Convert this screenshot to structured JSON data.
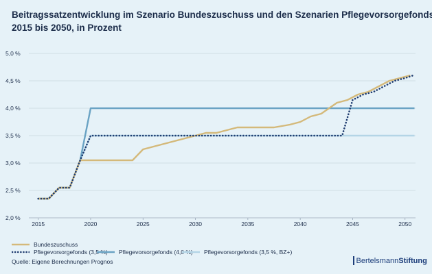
{
  "title_line1": "Beitragssatzentwicklung im Szenario Bundeszuschuss und den Szenarien Pflegevorsorgefonds,",
  "title_line2": "2015 bis 2050, in Prozent",
  "source": "Quelle: Eigene Berechnungen Prognos",
  "brand_part1": "Bertelsmann",
  "brand_part2": "Stiftung",
  "legend": [
    {
      "label": "Bundeszuschuss",
      "color": "#d4b97a",
      "style": "solid"
    },
    {
      "label": "Pflegevorsorgefonds (3,5 %)",
      "color": "#1f3c70",
      "style": "dotted"
    },
    {
      "label": "Pflegevorsorgefonds (4,0 %)",
      "color": "#6aa3c4",
      "style": "solid"
    },
    {
      "label": "Pflegevorsorgefonds (3,5 %, BZ+)",
      "color": "#b4d5e6",
      "style": "solid"
    }
  ],
  "chart_data": {
    "type": "line",
    "xlim": [
      2014.3,
      2051
    ],
    "ylim": [
      2.0,
      5.0
    ],
    "x_ticks": [
      2015,
      2020,
      2025,
      2030,
      2035,
      2040,
      2045,
      2050
    ],
    "y_ticks": [
      2.0,
      2.5,
      3.0,
      3.5,
      4.0,
      4.5,
      5.0
    ],
    "x_tick_labels": [
      "2015",
      "2020",
      "2025",
      "2030",
      "2035",
      "2040",
      "2045",
      "2050"
    ],
    "y_tick_labels": [
      "2,0 %",
      "2,5 %",
      "3,0 %",
      "3,5 %",
      "4,0 %",
      "4,5 %",
      "5,0 %"
    ],
    "grid": "horizontal",
    "series": [
      {
        "name": "Pflegevorsorgefonds (3,5 %, BZ+)",
        "color": "#b4d5e6",
        "style": "solid",
        "x": [
          2015,
          2016,
          2017,
          2018,
          2019,
          2020,
          2044,
          2050.9
        ],
        "y": [
          2.35,
          2.35,
          2.55,
          2.55,
          3.05,
          3.5,
          3.5,
          3.5
        ]
      },
      {
        "name": "Pflegevorsorgefonds (4,0 %)",
        "color": "#6aa3c4",
        "style": "solid",
        "x": [
          2015,
          2016,
          2017,
          2018,
          2019,
          2020,
          2050.9
        ],
        "y": [
          2.35,
          2.35,
          2.55,
          2.55,
          3.05,
          4.0,
          4.0
        ]
      },
      {
        "name": "Bundeszuschuss",
        "color": "#d4b97a",
        "style": "solid",
        "x": [
          2015,
          2016,
          2017,
          2018,
          2019,
          2024,
          2025,
          2028,
          2030,
          2031,
          2032,
          2034,
          2037.5,
          2039,
          2040,
          2041,
          2042,
          2043.5,
          2044.5,
          2045.5,
          2046.5,
          2047.5,
          2048.5,
          2049.5,
          2050.5
        ],
        "y": [
          2.35,
          2.35,
          2.55,
          2.55,
          3.05,
          3.05,
          3.25,
          3.4,
          3.5,
          3.55,
          3.55,
          3.65,
          3.65,
          3.7,
          3.75,
          3.85,
          3.9,
          4.1,
          4.15,
          4.25,
          4.3,
          4.4,
          4.5,
          4.55,
          4.6
        ]
      },
      {
        "name": "Pflegevorsorgefonds (3,5 %)",
        "color": "#1f3c70",
        "style": "dotted",
        "x": [
          2015,
          2016,
          2017,
          2018,
          2019,
          2020,
          2044,
          2045,
          2046,
          2047,
          2048,
          2049,
          2050,
          2050.8
        ],
        "y": [
          2.35,
          2.35,
          2.55,
          2.55,
          3.05,
          3.5,
          3.5,
          4.15,
          4.25,
          4.3,
          4.4,
          4.5,
          4.55,
          4.6
        ]
      }
    ]
  }
}
